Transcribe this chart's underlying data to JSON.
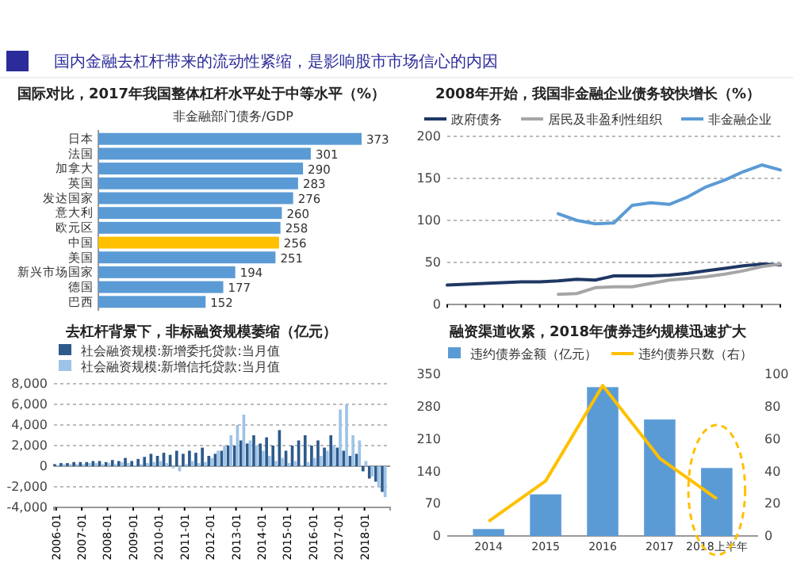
{
  "chart_data": [
    {
      "type": "other",
      "title": "国内金融去杠杆带来的流动性紧缩，是影响股市市场信心的内因"
    },
    {
      "type": "bar",
      "orientation": "horizontal",
      "title": "国际对比，2017年我国整体杠杆水平处于中等水平（%）",
      "subtitle": "非金融部门债务/GDP",
      "categories": [
        "日本",
        "法国",
        "加拿大",
        "英国",
        "发达国家",
        "意大利",
        "欧元区",
        "中国",
        "美国",
        "新兴市场国家",
        "德国",
        "巴西"
      ],
      "values": [
        373,
        301,
        290,
        283,
        276,
        260,
        258,
        256,
        251,
        194,
        177,
        152
      ],
      "colors": [
        "#5b9bd5",
        "#5b9bd5",
        "#5b9bd5",
        "#5b9bd5",
        "#5b9bd5",
        "#5b9bd5",
        "#5b9bd5",
        "#ffc000",
        "#5b9bd5",
        "#5b9bd5",
        "#5b9bd5",
        "#5b9bd5"
      ],
      "data_labels": true
    },
    {
      "type": "line",
      "title": "2008年开始，我国非金融企业债务较快增长（%）",
      "categories": [
        null,
        null,
        null,
        null,
        null,
        null,
        null,
        null,
        null,
        null,
        null,
        null,
        null,
        null,
        null,
        null,
        null,
        null,
        null
      ],
      "ylim": [
        0,
        200
      ],
      "yticks": [
        0,
        50,
        100,
        150,
        200
      ],
      "grid": "y",
      "legend": "top",
      "tick_labels": "y",
      "series": [
        {
          "name": "政府债务",
          "color": "#1f3864",
          "values": [
            23,
            24,
            25,
            26,
            27,
            27,
            28,
            30,
            29,
            34,
            34,
            34,
            35,
            37,
            40,
            43,
            46,
            48,
            47
          ]
        },
        {
          "name": "居民及非盈利性组织",
          "color": "#a6a6a6",
          "values": [
            null,
            null,
            null,
            null,
            null,
            null,
            12,
            13,
            20,
            21,
            21,
            25,
            29,
            31,
            33,
            36,
            40,
            45,
            48
          ]
        },
        {
          "name": "非金融企业",
          "color": "#5b9bd5",
          "values": [
            null,
            null,
            null,
            null,
            null,
            null,
            108,
            100,
            96,
            97,
            118,
            121,
            119,
            128,
            140,
            148,
            158,
            166,
            160
          ]
        }
      ]
    },
    {
      "type": "bar",
      "title": "去杠杆背景下，非标融资规模萎缩（亿元）",
      "x": [
        "2006-01",
        "2006-04",
        "2006-07",
        "2006-10",
        "2007-01",
        "2007-04",
        "2007-07",
        "2007-10",
        "2008-01",
        "2008-04",
        "2008-07",
        "2008-10",
        "2009-01",
        "2009-04",
        "2009-07",
        "2009-10",
        "2010-01",
        "2010-04",
        "2010-07",
        "2010-10",
        "2011-01",
        "2011-04",
        "2011-07",
        "2011-10",
        "2012-01",
        "2012-04",
        "2012-07",
        "2012-10",
        "2013-01",
        "2013-04",
        "2013-07",
        "2013-10",
        "2014-01",
        "2014-04",
        "2014-07",
        "2014-10",
        "2015-01",
        "2015-04",
        "2015-07",
        "2015-10",
        "2016-01",
        "2016-04",
        "2016-07",
        "2016-10",
        "2017-01",
        "2017-04",
        "2017-07",
        "2017-10",
        "2018-01",
        "2018-04",
        "2018-07",
        "2018-10"
      ],
      "xlim": [
        "2005-12",
        "2019-01"
      ],
      "xticks": [
        "2006-01",
        "2007-01",
        "2008-01",
        "2009-01",
        "2010-01",
        "2011-01",
        "2012-01",
        "2013-01",
        "2014-01",
        "2015-01",
        "2016-01",
        "2017-01",
        "2018-01"
      ],
      "ylim": [
        -4000,
        8000
      ],
      "yticks": [
        {
          "value": -4000,
          "label": "-4,000"
        },
        {
          "value": -2000,
          "label": "-2,000"
        },
        0,
        {
          "value": 2000,
          "label": "2,000"
        },
        {
          "value": 4000,
          "label": "4,000"
        },
        {
          "value": 6000,
          "label": "6,000"
        },
        {
          "value": 8000,
          "label": "8,000"
        }
      ],
      "grid": "y",
      "legend": "top",
      "series": [
        {
          "name": "社会融资规模:新增委托贷款:当月值",
          "color": "#2e5a8c",
          "values": [
            200,
            300,
            300,
            400,
            400,
            400,
            500,
            500,
            400,
            600,
            500,
            800,
            500,
            700,
            900,
            1200,
            1000,
            1300,
            1100,
            1500,
            1200,
            1500,
            1300,
            1800,
            1000,
            1200,
            1500,
            2000,
            2000,
            2500,
            2200,
            3000,
            2200,
            2800,
            2000,
            3500,
            1500,
            2000,
            2500,
            3000,
            2000,
            2500,
            1800,
            3000,
            1800,
            1500,
            1000,
            1200,
            -500,
            -1200,
            -1500,
            -2500
          ]
        },
        {
          "name": "社会融资规模:新增信托贷款:当月值",
          "color": "#9dc3e6",
          "values": [
            100,
            200,
            200,
            200,
            200,
            300,
            300,
            200,
            300,
            200,
            400,
            300,
            100,
            200,
            300,
            400,
            500,
            300,
            -200,
            -500,
            200,
            500,
            300,
            400,
            800,
            1500,
            2000,
            3000,
            4000,
            5000,
            2500,
            2000,
            1500,
            1000,
            500,
            800,
            300,
            500,
            100,
            400,
            800,
            1000,
            1500,
            2000,
            5500,
            6000,
            3000,
            2500,
            500,
            -1000,
            -2000,
            -3000
          ]
        }
      ]
    },
    {
      "type": "bar",
      "title": "融资渠道收紧，2018年债券违约规模迅速扩大",
      "categories": [
        "2014",
        "2015",
        "2016",
        "2017",
        "2018上半年"
      ],
      "ylim": [
        0,
        350
      ],
      "yticks": [
        0,
        70,
        140,
        210,
        280,
        350
      ],
      "y2lim": [
        0,
        100
      ],
      "y2ticks": [
        0,
        20,
        40,
        60,
        80,
        100
      ],
      "legend": "top",
      "series": [
        {
          "name": "违约债券金额（亿元）",
          "color": "#5b9bd5",
          "values": [
            15,
            90,
            322,
            252,
            147
          ]
        },
        {
          "name": "违约债券只数（右）",
          "type": "line",
          "axis": "y2",
          "color": "#ffc000",
          "values": [
            9,
            34,
            93,
            48,
            23
          ]
        }
      ]
    }
  ]
}
